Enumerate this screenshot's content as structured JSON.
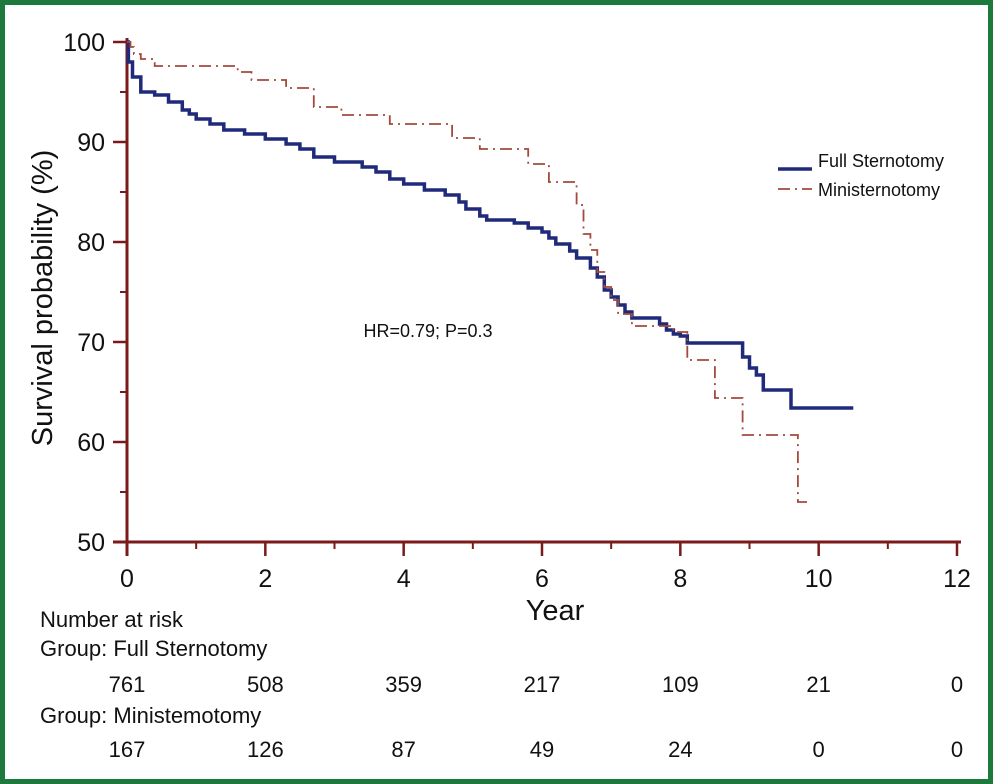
{
  "chart_data": {
    "type": "line",
    "subtype": "kaplan-meier",
    "xlabel": "Year",
    "ylabel": "Survival probability (%)",
    "xlim": [
      0,
      12
    ],
    "ylim": [
      50,
      100
    ],
    "x_ticks": [
      0,
      2,
      4,
      6,
      8,
      10,
      12
    ],
    "y_ticks": [
      50,
      60,
      70,
      80,
      90,
      100
    ],
    "x_tick_labels": [
      "0",
      "2",
      "4",
      "6",
      "8",
      "10",
      "12"
    ],
    "y_tick_labels": [
      "50",
      "60",
      "70",
      "80",
      "90",
      "100"
    ],
    "grid": false,
    "legend_position": "top-right",
    "annotation": "HR=0.79; P=0.3",
    "series": [
      {
        "name": "Full Sternotomy",
        "color": "#1f2a7a",
        "line_style": "solid",
        "points": [
          [
            0,
            100
          ],
          [
            0.02,
            98
          ],
          [
            0.08,
            96.5
          ],
          [
            0.2,
            95
          ],
          [
            0.4,
            94.7
          ],
          [
            0.6,
            94
          ],
          [
            0.8,
            93.2
          ],
          [
            0.9,
            92.8
          ],
          [
            1.0,
            92.3
          ],
          [
            1.2,
            91.8
          ],
          [
            1.4,
            91.2
          ],
          [
            1.7,
            90.8
          ],
          [
            2.0,
            90.3
          ],
          [
            2.3,
            89.8
          ],
          [
            2.5,
            89.3
          ],
          [
            2.7,
            88.5
          ],
          [
            3.0,
            88.0
          ],
          [
            3.4,
            87.5
          ],
          [
            3.6,
            87.0
          ],
          [
            3.8,
            86.3
          ],
          [
            4.0,
            85.8
          ],
          [
            4.3,
            85.2
          ],
          [
            4.6,
            84.7
          ],
          [
            4.8,
            84.0
          ],
          [
            4.9,
            83.3
          ],
          [
            5.1,
            82.6
          ],
          [
            5.2,
            82.2
          ],
          [
            5.6,
            81.9
          ],
          [
            5.8,
            81.4
          ],
          [
            6.0,
            81.0
          ],
          [
            6.1,
            80.4
          ],
          [
            6.2,
            79.8
          ],
          [
            6.4,
            79.1
          ],
          [
            6.5,
            78.4
          ],
          [
            6.7,
            77.4
          ],
          [
            6.8,
            76.5
          ],
          [
            6.9,
            75.2
          ],
          [
            7.0,
            74.5
          ],
          [
            7.1,
            73.7
          ],
          [
            7.2,
            73.0
          ],
          [
            7.3,
            72.4
          ],
          [
            7.5,
            72.4
          ],
          [
            7.7,
            71.8
          ],
          [
            7.8,
            71.2
          ],
          [
            7.9,
            70.8
          ],
          [
            8.0,
            70.6
          ],
          [
            8.1,
            69.9
          ],
          [
            8.8,
            69.9
          ],
          [
            8.9,
            68.5
          ],
          [
            9.0,
            67.4
          ],
          [
            9.1,
            66.7
          ],
          [
            9.2,
            65.2
          ],
          [
            9.6,
            65.2
          ],
          [
            9.6,
            63.4
          ],
          [
            10.5,
            63.4
          ]
        ]
      },
      {
        "name": "Ministernotomy",
        "color": "#a34a3c",
        "line_style": "dash-dot",
        "points": [
          [
            0,
            100
          ],
          [
            0.05,
            99.5
          ],
          [
            0.1,
            98.8
          ],
          [
            0.2,
            98.3
          ],
          [
            0.4,
            97.6
          ],
          [
            1.3,
            97.6
          ],
          [
            1.6,
            97.0
          ],
          [
            1.8,
            96.2
          ],
          [
            2.2,
            96.2
          ],
          [
            2.3,
            95.4
          ],
          [
            2.6,
            95.4
          ],
          [
            2.7,
            93.5
          ],
          [
            3.0,
            93.5
          ],
          [
            3.1,
            92.7
          ],
          [
            3.7,
            92.7
          ],
          [
            3.8,
            91.8
          ],
          [
            4.6,
            91.8
          ],
          [
            4.7,
            90.4
          ],
          [
            5.0,
            90.4
          ],
          [
            5.1,
            89.3
          ],
          [
            5.7,
            89.3
          ],
          [
            5.8,
            87.8
          ],
          [
            6.0,
            87.8
          ],
          [
            6.1,
            86.0
          ],
          [
            6.4,
            86.0
          ],
          [
            6.5,
            83.7
          ],
          [
            6.6,
            82.0
          ],
          [
            6.6,
            80.8
          ],
          [
            6.7,
            79.2
          ],
          [
            6.8,
            77.0
          ],
          [
            6.9,
            75.5
          ],
          [
            7.0,
            74.2
          ],
          [
            7.1,
            72.8
          ],
          [
            7.3,
            71.6
          ],
          [
            7.8,
            71.6
          ],
          [
            7.9,
            71.0
          ],
          [
            8.0,
            71.0
          ],
          [
            8.1,
            68.2
          ],
          [
            8.4,
            68.2
          ],
          [
            8.5,
            64.4
          ],
          [
            8.8,
            64.4
          ],
          [
            8.9,
            60.7
          ],
          [
            9.6,
            60.7
          ],
          [
            9.7,
            57.0
          ],
          [
            9.7,
            54.0
          ],
          [
            9.9,
            54.0
          ]
        ]
      }
    ],
    "number_at_risk": {
      "heading": "Number at risk",
      "groups": [
        {
          "label": "Group: Full Sternotomy",
          "values": [
            "761",
            "508",
            "359",
            "217",
            "109",
            "21",
            "0"
          ]
        },
        {
          "label": "Group: Ministemotomy",
          "values": [
            "167",
            "126",
            "87",
            "49",
            "24",
            "0",
            "0"
          ]
        }
      ]
    },
    "colors": {
      "axis": "#7a1a1a",
      "frame": "#1e7a3c"
    }
  }
}
